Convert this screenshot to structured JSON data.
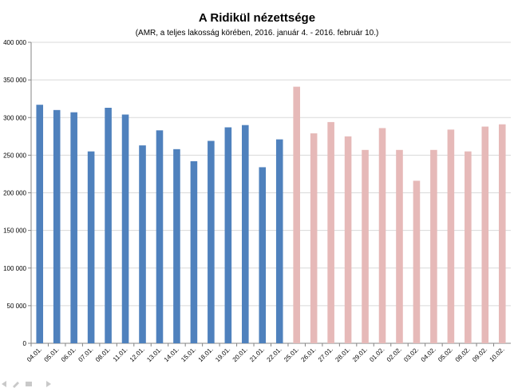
{
  "chart_data": {
    "type": "bar",
    "title": "A Ridikül nézettsége",
    "subtitle": "(AMR, a teljes lakosság körében, 2016. január 4. - 2016. február 10.)",
    "xlabel": "",
    "ylabel": "",
    "ylim": [
      0,
      400000
    ],
    "yticks": [
      0,
      50000,
      100000,
      150000,
      200000,
      250000,
      300000,
      350000,
      400000
    ],
    "ytick_labels": [
      "0",
      "50 000",
      "100 000",
      "150 000",
      "200 000",
      "250 000",
      "300 000",
      "350 000",
      "400 000"
    ],
    "grid": true,
    "legend": "none",
    "categories": [
      "04.01.",
      "05.01.",
      "06.01.",
      "07.01.",
      "08.01.",
      "11.01.",
      "12.01.",
      "13.01.",
      "14.01.",
      "15.01.",
      "18.01.",
      "19.01.",
      "20.01.",
      "21.01.",
      "22.01.",
      "25.01.",
      "26.01.",
      "27.01.",
      "28.01.",
      "29.01.",
      "01.02.",
      "02.02.",
      "03.02.",
      "04.02.",
      "05.02.",
      "08.02.",
      "09.02.",
      "10.02."
    ],
    "values": [
      317000,
      310000,
      307000,
      255000,
      313000,
      304000,
      263000,
      283000,
      258000,
      242000,
      269000,
      287000,
      290000,
      234000,
      271000,
      341000,
      279000,
      294000,
      275000,
      257000,
      286000,
      257000,
      216000,
      257000,
      284000,
      255000,
      288000,
      291000
    ],
    "colors": {
      "january": "#4f81bd",
      "february_period": "#e6b9b8",
      "grid": "#d9d9d9",
      "axis": "#868686"
    },
    "color_split_index": 15
  },
  "status_icons": [
    "arrow-left-icon",
    "pen-icon",
    "menu-icon",
    "arrow-right-icon"
  ]
}
